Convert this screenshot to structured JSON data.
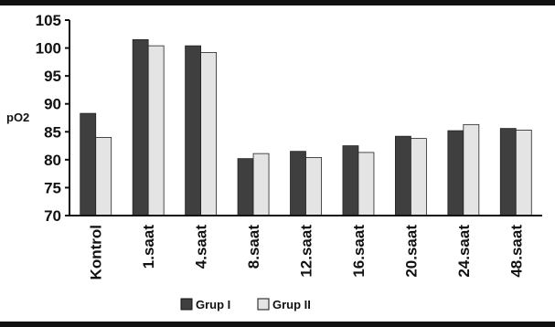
{
  "chart_data": {
    "type": "bar",
    "title": "",
    "xlabel": "",
    "ylabel": "pO2",
    "ylim": [
      70,
      105
    ],
    "yticks": [
      70,
      75,
      80,
      85,
      90,
      95,
      100,
      105
    ],
    "grid": false,
    "legend_position": "bottom",
    "categories": [
      "Kontrol",
      "1.saat",
      "4.saat",
      "8.saat",
      "12.saat",
      "16.saat",
      "20.saat",
      "24.saat",
      "48.saat"
    ],
    "series": [
      {
        "name": "Grup I",
        "color": "#3f3f3f",
        "values": [
          88.3,
          101.5,
          100.4,
          80.2,
          81.5,
          82.5,
          84.2,
          85.2,
          85.6
        ]
      },
      {
        "name": "Grup II",
        "color": "#e4e4e4",
        "values": [
          84.0,
          100.4,
          99.2,
          81.1,
          80.4,
          81.3,
          83.8,
          86.3,
          85.3
        ]
      }
    ]
  }
}
